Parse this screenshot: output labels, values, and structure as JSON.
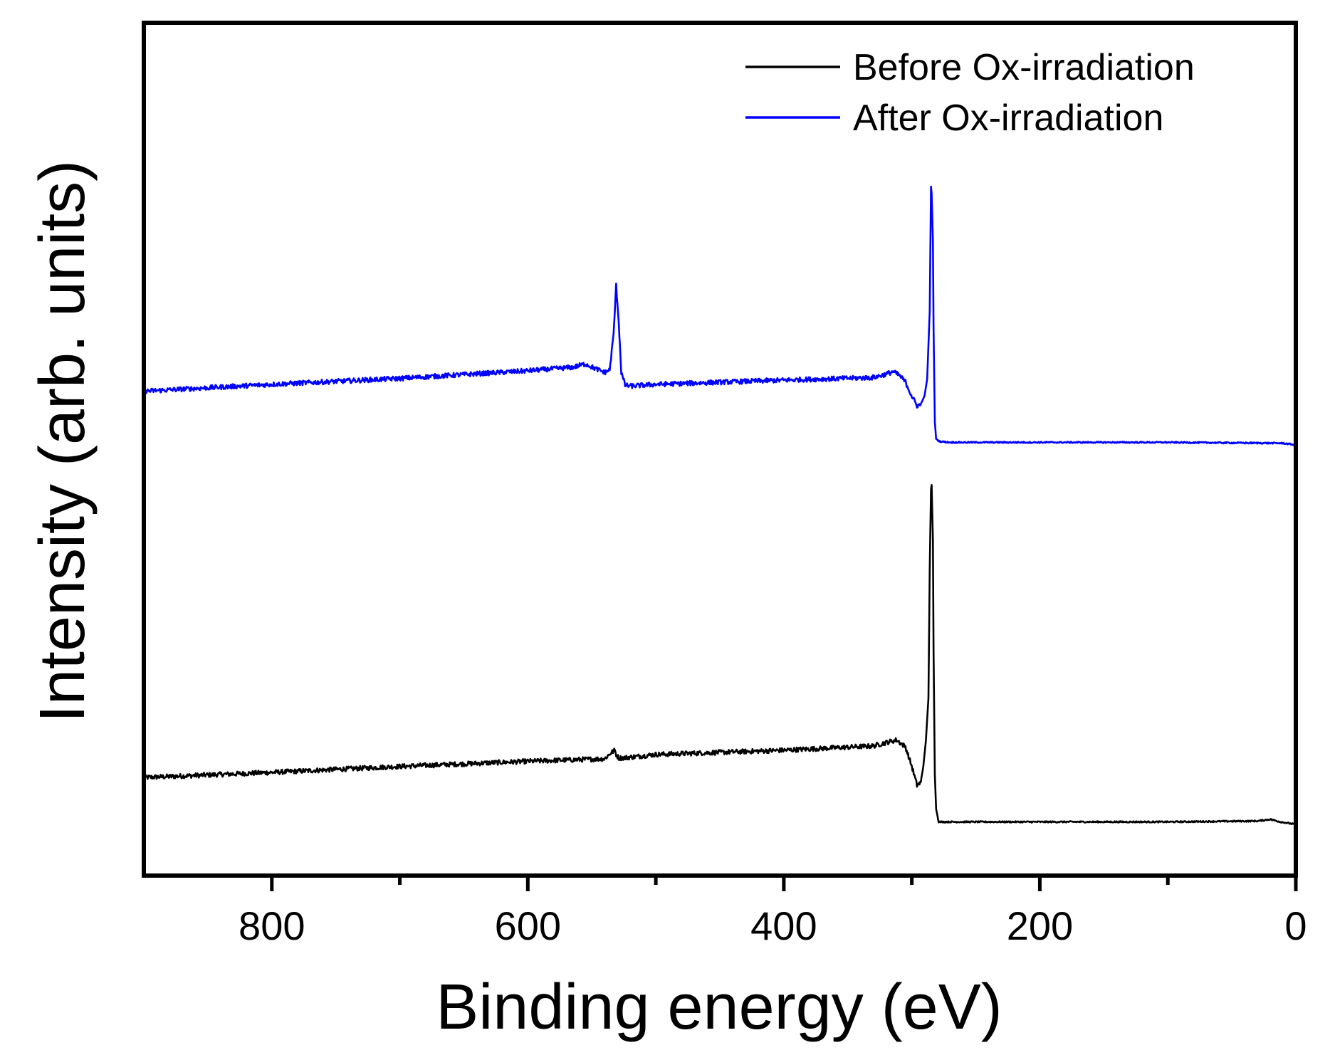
{
  "chart_data": {
    "type": "line",
    "title": "",
    "xlabel": "Binding energy (eV)",
    "ylabel": "Intensity (arb. units)",
    "xlim": [
      900,
      0
    ],
    "ylim": [
      0,
      100
    ],
    "x_reversed": true,
    "x_ticks": [
      800,
      600,
      400,
      200,
      0
    ],
    "x_tick_labels": [
      "800",
      "600",
      "400",
      "200",
      "0"
    ],
    "x_minor_ticks": [
      700,
      500,
      300,
      100
    ],
    "y_ticks_shown": false,
    "grid": false,
    "legend_position": "top-right",
    "series": [
      {
        "name": "Before Ox-irradiation",
        "color": "#000000",
        "x": [
          900,
          800,
          700,
          600,
          540,
          535,
          532,
          531,
          529,
          525,
          500,
          400,
          330,
          320,
          312,
          305,
          300,
          296,
          293,
          291,
          289,
          287,
          286,
          285,
          284.5,
          283.5,
          283,
          282,
          281,
          279,
          276,
          270,
          200,
          100,
          30,
          20,
          12,
          0
        ],
        "y": [
          11.5,
          12.1,
          12.8,
          13.4,
          13.7,
          14.4,
          14.7,
          14.2,
          13.8,
          13.8,
          14.2,
          14.7,
          15.2,
          15.6,
          15.9,
          15.1,
          12.8,
          10.6,
          10.9,
          12.8,
          15.8,
          20.8,
          35.8,
          45.3,
          45.8,
          39.3,
          26.3,
          11.8,
          7.8,
          6.3,
          6.3,
          6.3,
          6.3,
          6.3,
          6.4,
          6.6,
          6.3,
          6.0
        ]
      },
      {
        "name": "After Ox-irradiation",
        "color": "#0000ff",
        "x": [
          900,
          800,
          700,
          600,
          565,
          555,
          548,
          540,
          536,
          533,
          531,
          529,
          527,
          524,
          520,
          500,
          400,
          330,
          320,
          315,
          310,
          305,
          300,
          296,
          293,
          290,
          288,
          286,
          285,
          284.5,
          283.5,
          283,
          282,
          281,
          278,
          270,
          200,
          100,
          10,
          0
        ],
        "y": [
          56.8,
          57.6,
          58.3,
          59.2,
          59.6,
          60.0,
          59.5,
          59.0,
          59.3,
          63.5,
          69.2,
          65.0,
          59.0,
          57.5,
          57.4,
          57.6,
          58.1,
          58.4,
          58.8,
          59.1,
          58.7,
          57.9,
          56.2,
          55.1,
          55.2,
          56.3,
          58.2,
          66.2,
          80.8,
          80.0,
          74.4,
          64.2,
          53.2,
          51.2,
          50.9,
          50.8,
          50.8,
          50.8,
          50.7,
          50.5
        ]
      }
    ]
  }
}
